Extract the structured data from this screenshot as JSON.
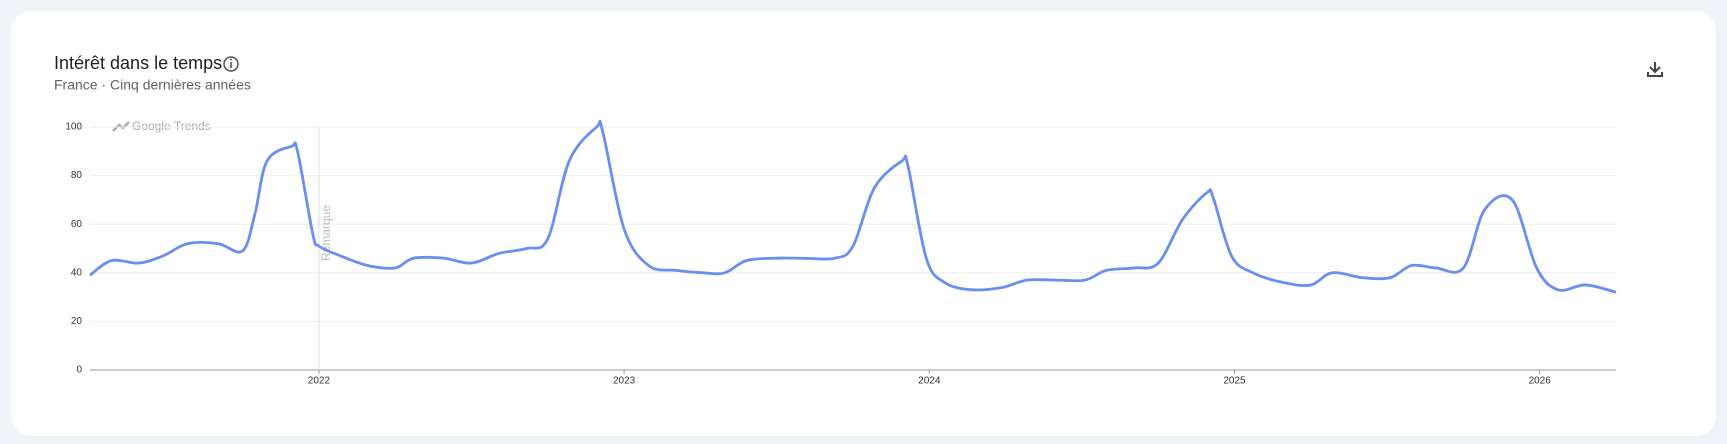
{
  "chart_data": {
    "type": "line",
    "title": "Intérêt dans le temps",
    "subtitle": "France · Cinq dernières années",
    "watermark": "Google Trends",
    "annotation": {
      "text": "Remarque",
      "x": 2022
    },
    "x": [
      2021.25,
      2021.32,
      2021.41,
      2021.49,
      2021.57,
      2021.67,
      2021.75,
      2021.79,
      2021.83,
      2021.91,
      2021.93,
      2021.98,
      2022.0,
      2022.07,
      2022.16,
      2022.25,
      2022.31,
      2022.41,
      2022.5,
      2022.59,
      2022.68,
      2022.75,
      2022.82,
      2022.91,
      2022.93,
      2023.0,
      2023.08,
      2023.17,
      2023.26,
      2023.33,
      2023.4,
      2023.49,
      2023.58,
      2023.69,
      2023.75,
      2023.82,
      2023.91,
      2023.93,
      2023.99,
      2024.05,
      2024.14,
      2024.24,
      2024.32,
      2024.42,
      2024.51,
      2024.58,
      2024.67,
      2024.75,
      2024.83,
      2024.91,
      2024.93,
      2024.99,
      2025.06,
      2025.16,
      2025.25,
      2025.32,
      2025.42,
      2025.51,
      2025.58,
      2025.66,
      2025.75,
      2025.82,
      2025.91,
      2025.99,
      2026.06,
      2026.15,
      2026.25
    ],
    "series": [
      {
        "color": "#6b8ff0",
        "values": [
          39,
          45,
          44,
          47,
          52,
          52,
          49,
          64,
          86,
          92,
          90,
          56,
          51,
          47,
          43,
          42,
          46,
          46,
          44,
          48,
          50,
          54,
          86,
          100,
          98,
          58,
          43,
          41,
          40,
          40,
          45,
          46,
          46,
          46,
          51,
          75,
          86,
          84,
          46,
          36,
          33,
          34,
          37,
          37,
          37,
          41,
          42,
          44,
          62,
          73,
          71,
          47,
          40,
          36,
          35,
          40,
          38,
          38,
          43,
          42,
          42,
          66,
          70,
          42,
          33,
          35,
          32
        ]
      }
    ],
    "xlim": [
      2021.25,
      2026.25
    ],
    "xticks": [
      2022,
      2023,
      2024,
      2025,
      2026
    ],
    "ylim": [
      0,
      100
    ],
    "yticks": [
      0,
      20,
      40,
      60,
      80,
      100
    ],
    "grid": true
  }
}
